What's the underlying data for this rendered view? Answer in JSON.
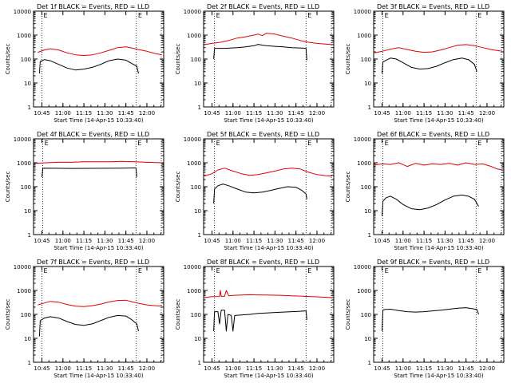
{
  "page": {
    "background": "#ffffff"
  },
  "colors": {
    "events": "#000000",
    "lld": "#e00000",
    "axis": "#000000"
  },
  "chart_data": [
    {
      "type": "line",
      "title": "Det 1f BLACK = Events, RED = LLD",
      "xlabel": "Start Time (14-Apr-15 10:33:40)",
      "ylabel": "Counts/sec",
      "xlim": [
        10.65,
        12.2
      ],
      "ylim": [
        1,
        10000
      ],
      "yscale": "log",
      "xticks": [
        "10:45",
        "11:00",
        "11:15",
        "11:30",
        "11:45",
        "12:00"
      ],
      "yticks": [
        "1",
        "10",
        "100",
        "1000",
        "10000"
      ],
      "markers": [
        10.75,
        11.875
      ],
      "marker_labels": [
        "E",
        "E"
      ],
      "series": [
        {
          "name": "BLACK = Events",
          "color": "#000000",
          "x": [
            10.72,
            10.73,
            10.78,
            10.85,
            10.95,
            11.05,
            11.15,
            11.25,
            11.35,
            11.45,
            11.55,
            11.65,
            11.75,
            11.82,
            11.88,
            11.9
          ],
          "values": [
            25,
            80,
            95,
            85,
            60,
            42,
            35,
            38,
            45,
            60,
            85,
            100,
            90,
            65,
            50,
            25
          ]
        },
        {
          "name": "RED = LLD",
          "color": "#e00000",
          "x": [
            10.7,
            10.78,
            10.85,
            10.95,
            11.05,
            11.15,
            11.25,
            11.35,
            11.45,
            11.55,
            11.65,
            11.75,
            11.82,
            11.9,
            12.0,
            12.1,
            12.18
          ],
          "values": [
            190,
            240,
            270,
            240,
            180,
            150,
            140,
            150,
            180,
            230,
            300,
            320,
            290,
            250,
            210,
            170,
            150
          ]
        }
      ]
    },
    {
      "type": "line",
      "title": "Det 2f BLACK = Events, RED = LLD",
      "xlabel": "Start Time (14-Apr-15 10:33:40)",
      "ylabel": "Counts/sec",
      "xlim": [
        10.65,
        12.2
      ],
      "ylim": [
        1,
        10000
      ],
      "yscale": "log",
      "xticks": [
        "10:45",
        "11:00",
        "11:15",
        "11:30",
        "11:45",
        "12:00"
      ],
      "yticks": [
        "1",
        "10",
        "100",
        "1000",
        "10000"
      ],
      "markers": [
        10.78,
        11.87
      ],
      "marker_labels": [
        "E",
        "E"
      ],
      "series": [
        {
          "name": "BLACK = Events",
          "color": "#000000",
          "x": [
            10.77,
            10.78,
            10.9,
            11.05,
            11.15,
            11.25,
            11.3,
            11.35,
            11.4,
            11.5,
            11.6,
            11.7,
            11.8,
            11.87,
            11.88
          ],
          "values": [
            100,
            280,
            280,
            300,
            320,
            360,
            410,
            380,
            360,
            340,
            320,
            300,
            290,
            280,
            90
          ]
        },
        {
          "name": "RED = LLD",
          "color": "#e00000",
          "x": [
            10.66,
            10.75,
            10.85,
            10.95,
            11.05,
            11.15,
            11.25,
            11.3,
            11.35,
            11.4,
            11.5,
            11.6,
            11.7,
            11.8,
            11.9,
            12.0,
            12.1,
            12.18
          ],
          "values": [
            400,
            450,
            500,
            600,
            750,
            850,
            1000,
            1100,
            950,
            1200,
            1100,
            900,
            750,
            600,
            500,
            450,
            420,
            400
          ]
        }
      ]
    },
    {
      "type": "line",
      "title": "Det 3f BLACK = Events, RED = LLD",
      "xlabel": "Start Time (14-Apr-15 10:33:40)",
      "ylabel": "Counts/sec",
      "xlim": [
        10.65,
        12.2
      ],
      "ylim": [
        1,
        10000
      ],
      "yscale": "log",
      "xticks": [
        "10:45",
        "11:00",
        "11:15",
        "11:30",
        "11:45",
        "12:00"
      ],
      "yticks": [
        "1",
        "10",
        "100",
        "1000",
        "10000"
      ],
      "markers": [
        10.76,
        11.87
      ],
      "marker_labels": [
        "E",
        "E"
      ],
      "series": [
        {
          "name": "BLACK = Events",
          "color": "#000000",
          "x": [
            10.75,
            10.76,
            10.8,
            10.85,
            10.92,
            11.0,
            11.1,
            11.2,
            11.3,
            11.4,
            11.5,
            11.6,
            11.7,
            11.78,
            11.85,
            11.88
          ],
          "values": [
            25,
            75,
            90,
            110,
            100,
            70,
            45,
            38,
            40,
            50,
            70,
            95,
            110,
            95,
            60,
            30
          ]
        },
        {
          "name": "RED = LLD",
          "color": "#e00000",
          "x": [
            10.66,
            10.75,
            10.85,
            10.95,
            11.05,
            11.15,
            11.25,
            11.35,
            11.45,
            11.55,
            11.65,
            11.75,
            11.85,
            11.95,
            12.05,
            12.15,
            12.18
          ],
          "values": [
            180,
            210,
            260,
            300,
            250,
            210,
            190,
            200,
            240,
            300,
            380,
            400,
            360,
            300,
            250,
            220,
            210
          ]
        }
      ]
    },
    {
      "type": "line",
      "title": "Det 4f BLACK = Events, RED = LLD",
      "xlabel": "Start Time (14-Apr-15 10:33:40)",
      "ylabel": "Counts/sec",
      "xlim": [
        10.65,
        12.2
      ],
      "ylim": [
        1,
        10000
      ],
      "yscale": "log",
      "xticks": [
        "10:45",
        "11:00",
        "11:15",
        "11:30",
        "11:45",
        "12:00"
      ],
      "yticks": [
        "1",
        "10",
        "100",
        "1000",
        "10000"
      ],
      "markers": [
        10.76,
        11.87
      ],
      "marker_labels": [
        "E",
        "E"
      ],
      "series": [
        {
          "name": "BLACK = Events",
          "color": "#000000",
          "x": [
            10.75,
            10.76,
            10.9,
            11.1,
            11.3,
            11.5,
            11.7,
            11.87,
            11.88
          ],
          "values": [
            250,
            600,
            590,
            580,
            585,
            590,
            600,
            610,
            250
          ]
        },
        {
          "name": "RED = LLD",
          "color": "#e00000",
          "x": [
            10.66,
            10.8,
            10.95,
            11.1,
            11.25,
            11.4,
            11.55,
            11.7,
            11.85,
            12.0,
            12.18
          ],
          "values": [
            950,
            1000,
            1050,
            1050,
            1100,
            1100,
            1100,
            1150,
            1100,
            1050,
            1000
          ]
        }
      ]
    },
    {
      "type": "line",
      "title": "Det 5f BLACK = Events, RED = LLD",
      "xlabel": "Start Time (14-Apr-15 10:33:40)",
      "ylabel": "Counts/sec",
      "xlim": [
        10.65,
        12.2
      ],
      "ylim": [
        1,
        10000
      ],
      "yscale": "log",
      "xticks": [
        "10:45",
        "11:00",
        "11:15",
        "11:30",
        "11:45",
        "12:00"
      ],
      "yticks": [
        "1",
        "10",
        "100",
        "1000",
        "10000"
      ],
      "markers": [
        10.78,
        11.87
      ],
      "marker_labels": [
        "E",
        "E"
      ],
      "series": [
        {
          "name": "BLACK = Events",
          "color": "#000000",
          "x": [
            10.77,
            10.78,
            10.82,
            10.88,
            10.95,
            11.05,
            11.15,
            11.25,
            11.35,
            11.45,
            11.55,
            11.65,
            11.75,
            11.82,
            11.87,
            11.88
          ],
          "values": [
            20,
            80,
            110,
            130,
            110,
            80,
            60,
            55,
            60,
            70,
            85,
            100,
            95,
            70,
            50,
            30
          ]
        },
        {
          "name": "RED = LLD",
          "color": "#e00000",
          "x": [
            10.66,
            10.75,
            10.82,
            10.9,
            11.0,
            11.1,
            11.2,
            11.3,
            11.4,
            11.5,
            11.6,
            11.7,
            11.8,
            11.9,
            12.0,
            12.1,
            12.18
          ],
          "values": [
            280,
            350,
            500,
            600,
            450,
            350,
            300,
            320,
            380,
            450,
            550,
            600,
            550,
            400,
            320,
            290,
            280
          ]
        }
      ]
    },
    {
      "type": "line",
      "title": "Det 6f BLACK = Events, RED = LLD",
      "xlabel": "Start Time (14-Apr-15 10:33:40)",
      "ylabel": "Counts/sec",
      "xlim": [
        10.65,
        12.2
      ],
      "ylim": [
        1,
        10000
      ],
      "yscale": "log",
      "xticks": [
        "10:45",
        "11:00",
        "11:15",
        "11:30",
        "11:45",
        "12:00"
      ],
      "yticks": [
        "1",
        "10",
        "100",
        "1000",
        "10000"
      ],
      "markers": [
        10.76,
        11.87
      ],
      "marker_labels": [
        "E",
        "E"
      ],
      "series": [
        {
          "name": "BLACK = Events",
          "color": "#000000",
          "x": [
            10.75,
            10.76,
            10.8,
            10.85,
            10.92,
            11.0,
            11.1,
            11.2,
            11.3,
            11.4,
            11.5,
            11.6,
            11.7,
            11.78,
            11.85,
            11.9
          ],
          "values": [
            6,
            25,
            35,
            40,
            30,
            18,
            12,
            11,
            13,
            18,
            28,
            40,
            45,
            40,
            30,
            15
          ]
        },
        {
          "name": "RED = LLD",
          "color": "#e00000",
          "x": [
            10.66,
            10.75,
            10.85,
            10.95,
            11.05,
            11.15,
            11.25,
            11.35,
            11.45,
            11.55,
            11.65,
            11.75,
            11.85,
            11.95,
            12.05,
            12.12,
            12.18
          ],
          "values": [
            800,
            900,
            850,
            1000,
            700,
            950,
            800,
            900,
            850,
            950,
            800,
            1000,
            850,
            900,
            700,
            550,
            500
          ]
        }
      ]
    },
    {
      "type": "line",
      "title": "Det 7f BLACK = Events, RED = LLD",
      "xlabel": "Start Time (14-Apr-15 10:33:40)",
      "ylabel": "Counts/sec",
      "xlim": [
        10.65,
        12.2
      ],
      "ylim": [
        1,
        10000
      ],
      "yscale": "log",
      "xticks": [
        "10:45",
        "11:00",
        "11:15",
        "11:30",
        "11:45",
        "12:00"
      ],
      "yticks": [
        "1",
        "10",
        "100",
        "1000",
        "10000"
      ],
      "markers": [
        10.75,
        11.875
      ],
      "marker_labels": [
        "E",
        "E"
      ],
      "series": [
        {
          "name": "BLACK = Events",
          "color": "#000000",
          "x": [
            10.72,
            10.73,
            10.78,
            10.85,
            10.95,
            11.05,
            11.15,
            11.25,
            11.35,
            11.45,
            11.55,
            11.65,
            11.75,
            11.82,
            11.88,
            11.9
          ],
          "values": [
            12,
            55,
            70,
            80,
            70,
            50,
            38,
            35,
            40,
            55,
            75,
            90,
            85,
            60,
            40,
            20
          ]
        },
        {
          "name": "RED = LLD",
          "color": "#e00000",
          "x": [
            10.7,
            10.78,
            10.85,
            10.95,
            11.05,
            11.15,
            11.25,
            11.35,
            11.45,
            11.55,
            11.65,
            11.75,
            11.82,
            11.9,
            12.0,
            12.1,
            12.18
          ],
          "values": [
            250,
            300,
            350,
            320,
            260,
            220,
            210,
            230,
            270,
            330,
            380,
            390,
            340,
            290,
            250,
            230,
            220
          ]
        }
      ]
    },
    {
      "type": "line",
      "title": "Det 8f BLACK = Events, RED = LLD",
      "xlabel": "Start Time (14-Apr-15 10:33:40)",
      "ylabel": "Counts/sec",
      "xlim": [
        10.65,
        12.2
      ],
      "ylim": [
        1,
        10000
      ],
      "yscale": "log",
      "xticks": [
        "10:45",
        "11:00",
        "11:15",
        "11:30",
        "11:45",
        "12:00"
      ],
      "yticks": [
        "1",
        "10",
        "100",
        "1000",
        "10000"
      ],
      "markers": [
        10.78,
        11.87
      ],
      "marker_labels": [
        "E",
        "E"
      ],
      "series": [
        {
          "name": "BLACK = Events",
          "color": "#000000",
          "x": [
            10.77,
            10.78,
            10.82,
            10.84,
            10.86,
            10.9,
            10.92,
            10.94,
            10.98,
            11.0,
            11.02,
            11.1,
            11.2,
            11.3,
            11.4,
            11.5,
            11.6,
            11.7,
            11.8,
            11.87,
            11.88
          ],
          "values": [
            20,
            130,
            130,
            40,
            150,
            150,
            20,
            100,
            90,
            20,
            90,
            95,
            100,
            110,
            115,
            120,
            125,
            130,
            135,
            140,
            60
          ]
        },
        {
          "name": "RED = LLD",
          "color": "#e00000",
          "x": [
            10.66,
            10.75,
            10.84,
            10.85,
            10.86,
            10.9,
            10.92,
            10.95,
            11.0,
            11.1,
            11.2,
            11.3,
            11.4,
            11.5,
            11.6,
            11.7,
            11.8,
            11.9,
            12.0,
            12.18
          ],
          "values": [
            500,
            550,
            560,
            1000,
            560,
            580,
            1000,
            600,
            620,
            640,
            660,
            650,
            640,
            630,
            620,
            600,
            580,
            560,
            540,
            500
          ]
        }
      ]
    },
    {
      "type": "line",
      "title": "Det 9f BLACK = Events, RED = LLD",
      "xlabel": "Start Time (14-Apr-15 10:33:40)",
      "ylabel": "Counts/sec",
      "xlim": [
        10.65,
        12.2
      ],
      "ylim": [
        1,
        10000
      ],
      "yscale": "log",
      "xticks": [
        "10:45",
        "11:00",
        "11:15",
        "11:30",
        "11:45",
        "12:00"
      ],
      "yticks": [
        "1",
        "10",
        "100",
        "1000",
        "10000"
      ],
      "markers": [
        10.76,
        11.87
      ],
      "marker_labels": [
        "E",
        "E"
      ],
      "series": [
        {
          "name": "BLACK = Events",
          "color": "#000000",
          "x": [
            10.75,
            10.76,
            10.78,
            10.85,
            10.95,
            11.05,
            11.15,
            11.25,
            11.35,
            11.45,
            11.55,
            11.65,
            11.75,
            11.82,
            11.88,
            11.9
          ],
          "values": [
            20,
            150,
            160,
            165,
            145,
            130,
            125,
            130,
            140,
            150,
            165,
            180,
            190,
            175,
            160,
            100
          ]
        }
      ]
    }
  ]
}
